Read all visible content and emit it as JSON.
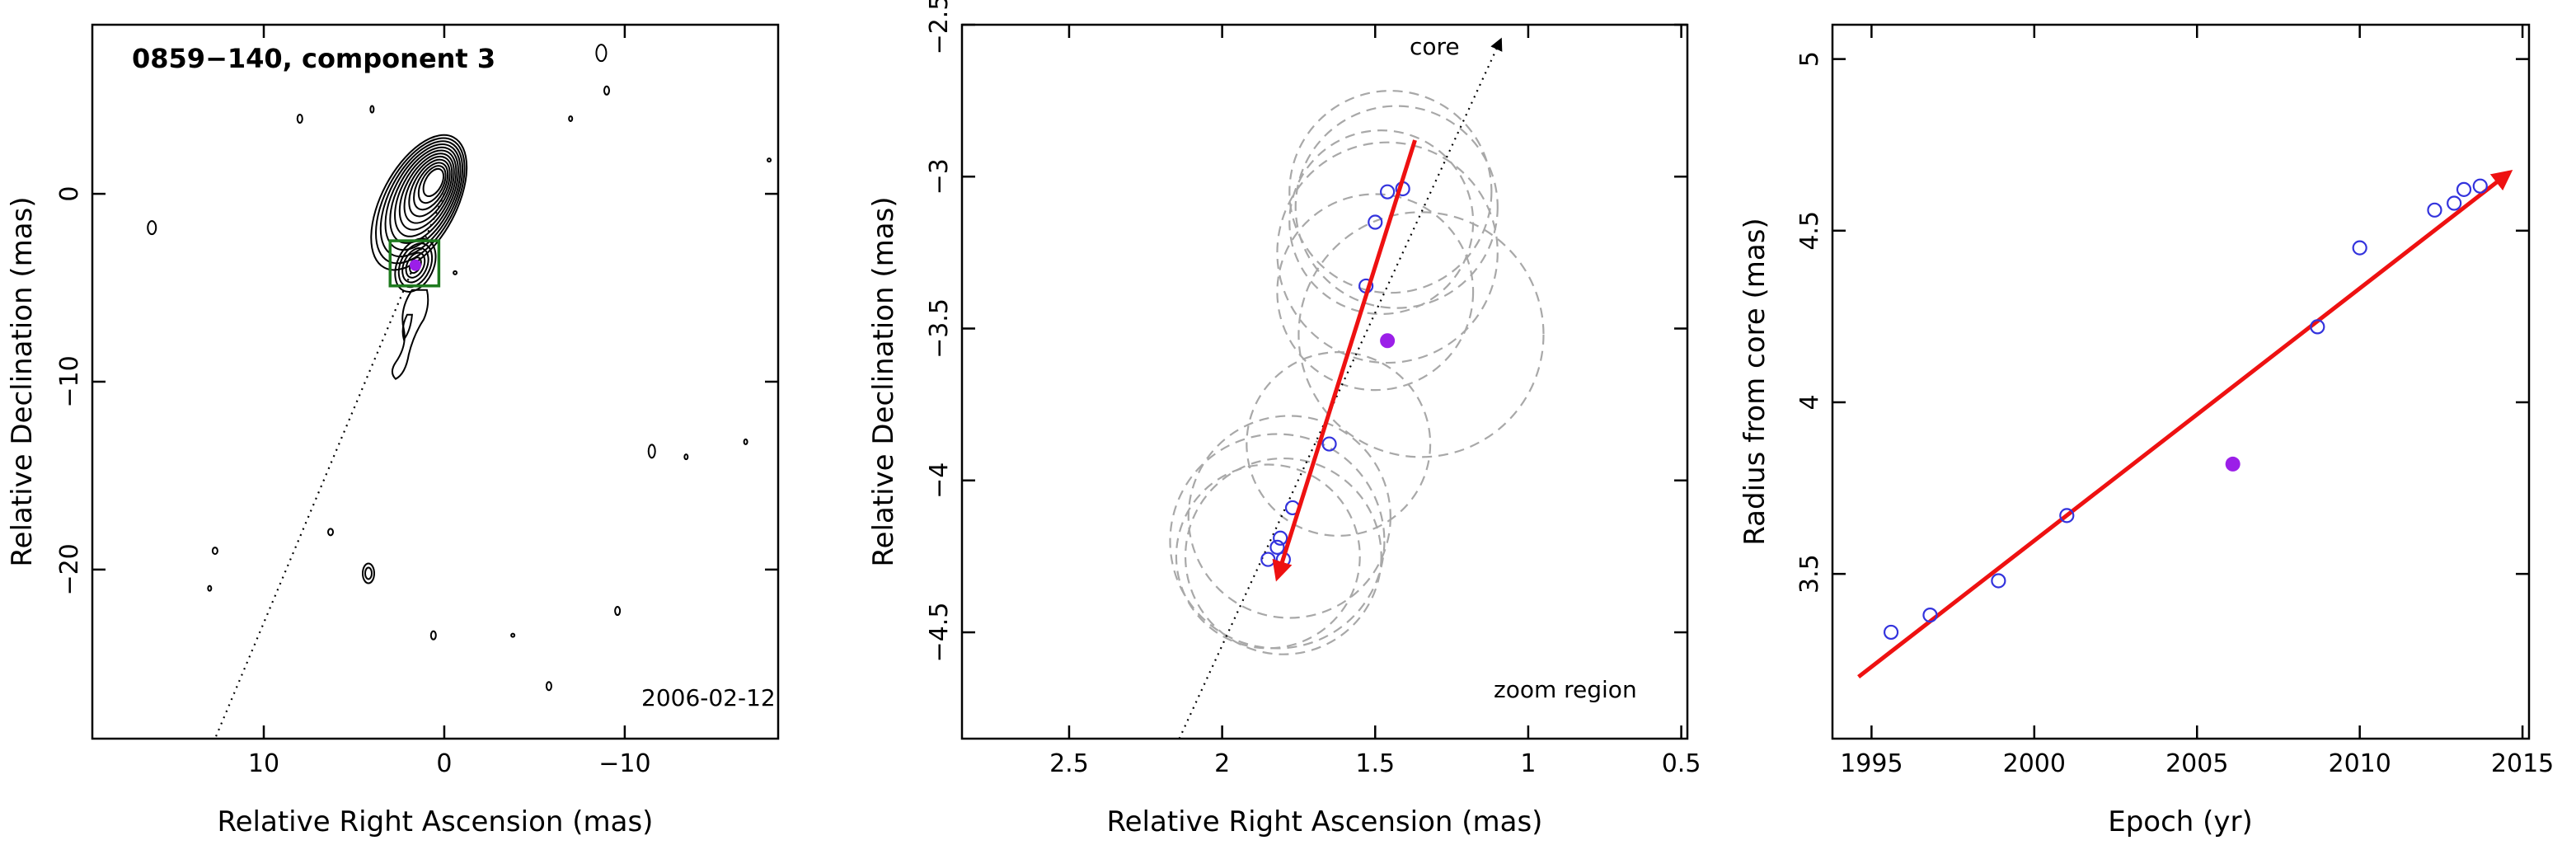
{
  "chart_data": [
    {
      "type": "contour-map",
      "title": "0859−140, component 3",
      "date": "2006-02-12",
      "xlabel": "Relative Right Ascension (mas)",
      "ylabel": "Relative Declination (mas)",
      "xlim": [
        19.5,
        -18.5
      ],
      "ylim": [
        -29,
        9
      ],
      "xticks": [
        10,
        0,
        -10
      ],
      "xtick_labels": [
        "10",
        "0",
        "−10"
      ],
      "yticks": [
        0,
        -10,
        -20
      ],
      "yticks_labels": [
        "0",
        "−10",
        "−20"
      ],
      "core": [
        0,
        0
      ],
      "component_position": [
        1.6,
        -3.8
      ],
      "zoom_box": {
        "x": [
          3.0,
          0.3
        ],
        "y": [
          -2.5,
          -4.9
        ]
      },
      "trajectory_line": {
        "from": [
          0,
          0
        ],
        "to": [
          12.7,
          -29
        ]
      },
      "colors": {
        "box": "#1e7a1e",
        "component": "#9b1fe8",
        "contours": "#000000"
      }
    },
    {
      "type": "scatter",
      "title": "",
      "xlabel": "Relative Right Ascension (mas)",
      "ylabel": "Relative Declination (mas)",
      "xlim": [
        2.85,
        0.48
      ],
      "ylim": [
        -4.85,
        -2.5
      ],
      "xticks": [
        2.5,
        2,
        1.5,
        1,
        0.5
      ],
      "xtick_labels": [
        "2.5",
        "2",
        "1.5",
        "1",
        "0.5"
      ],
      "yticks": [
        -2.5,
        -3,
        -3.5,
        -4,
        -4.5
      ],
      "ytick_labels": [
        "−2.5",
        "−3",
        "−3.5",
        "−4",
        "−4.5"
      ],
      "core_label": "core",
      "zoom_label": "zoom region",
      "points": [
        {
          "x": 1.41,
          "y": -3.04
        },
        {
          "x": 1.46,
          "y": -3.05
        },
        {
          "x": 1.5,
          "y": -3.15
        },
        {
          "x": 1.53,
          "y": -3.36
        },
        {
          "x": 1.65,
          "y": -3.88
        },
        {
          "x": 1.77,
          "y": -4.09
        },
        {
          "x": 1.81,
          "y": -4.19
        },
        {
          "x": 1.82,
          "y": -4.22
        },
        {
          "x": 1.8,
          "y": -4.26
        },
        {
          "x": 1.85,
          "y": -4.26
        }
      ],
      "highlighted_point": {
        "x": 1.46,
        "y": -3.54
      },
      "circles": [
        {
          "x": 1.45,
          "y": -3.05,
          "r": 0.33
        },
        {
          "x": 1.43,
          "y": -3.1,
          "r": 0.33
        },
        {
          "x": 1.48,
          "y": -3.15,
          "r": 0.3
        },
        {
          "x": 1.46,
          "y": -3.25,
          "r": 0.36
        },
        {
          "x": 1.5,
          "y": -3.38,
          "r": 0.32
        },
        {
          "x": 1.35,
          "y": -3.52,
          "r": 0.4
        },
        {
          "x": 1.62,
          "y": -3.88,
          "r": 0.3
        },
        {
          "x": 1.78,
          "y": -4.12,
          "r": 0.33
        },
        {
          "x": 1.82,
          "y": -4.2,
          "r": 0.35
        },
        {
          "x": 1.8,
          "y": -4.25,
          "r": 0.32
        },
        {
          "x": 1.85,
          "y": -4.25,
          "r": 0.3
        }
      ],
      "fit_arrow": {
        "from": [
          1.37,
          -2.88
        ],
        "to": [
          1.82,
          -4.32
        ]
      },
      "core_direction_line": {
        "from": [
          2.14,
          -4.85
        ],
        "to": [
          1.09,
          -2.55
        ]
      },
      "colors": {
        "arrow": "#ee1111",
        "open_points": "#3333dd",
        "filled_point": "#9b1fe8",
        "circles": "#a8a8a8"
      }
    },
    {
      "type": "scatter",
      "title": "",
      "xlabel": "Epoch (yr)",
      "ylabel": "Radius from core (mas)",
      "xlim": [
        1993.8,
        2015.2
      ],
      "ylim": [
        3.02,
        5.1
      ],
      "xticks": [
        1995,
        2000,
        2005,
        2010,
        2015
      ],
      "xtick_labels": [
        "1995",
        "2000",
        "2005",
        "2010",
        "2015"
      ],
      "yticks": [
        3.5,
        4,
        4.5,
        5
      ],
      "ytick_labels": [
        "3.5",
        "4",
        "4.5",
        "5"
      ],
      "points": [
        {
          "x": 1995.6,
          "y": 3.33
        },
        {
          "x": 1996.8,
          "y": 3.38
        },
        {
          "x": 1998.9,
          "y": 3.48
        },
        {
          "x": 2001.0,
          "y": 3.67
        },
        {
          "x": 2008.7,
          "y": 4.22
        },
        {
          "x": 2010.0,
          "y": 4.45
        },
        {
          "x": 2012.3,
          "y": 4.56
        },
        {
          "x": 2012.9,
          "y": 4.58
        },
        {
          "x": 2013.2,
          "y": 4.62
        },
        {
          "x": 2013.7,
          "y": 4.63
        }
      ],
      "highlighted_point": {
        "x": 2006.1,
        "y": 3.82
      },
      "fit_arrow": {
        "from": [
          1994.6,
          3.2
        ],
        "to": [
          2014.6,
          4.67
        ]
      },
      "colors": {
        "arrow": "#ee1111",
        "open_points": "#3333dd",
        "filled_point": "#9b1fe8"
      }
    }
  ]
}
